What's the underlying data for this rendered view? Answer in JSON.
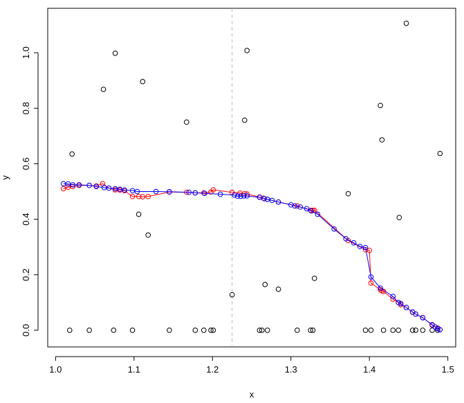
{
  "chart_data": {
    "type": "scatter",
    "xlabel": "x",
    "ylabel": "y",
    "xlim": [
      0.99,
      1.51
    ],
    "ylim": [
      -0.06,
      1.16
    ],
    "xticks": [
      1.0,
      1.1,
      1.2,
      1.3,
      1.4,
      1.5
    ],
    "xtick_labels": [
      "1.0",
      "1.1",
      "1.2",
      "1.3",
      "1.4",
      "1.5"
    ],
    "yticks": [
      0.0,
      0.2,
      0.4,
      0.6,
      0.8,
      1.0
    ],
    "ytick_labels": [
      "0.0",
      "0.2",
      "0.4",
      "0.6",
      "0.8",
      "1.0"
    ],
    "vline": {
      "x": 1.225,
      "color": "#bbbbbb",
      "style": "dashed"
    },
    "grid": false,
    "series": [
      {
        "mode": "points",
        "color": "#000000",
        "points": [
          [
            1.018,
            0.0
          ],
          [
            1.021,
            0.635
          ],
          [
            1.043,
            0.0
          ],
          [
            1.061,
            0.868
          ],
          [
            1.074,
            0.0
          ],
          [
            1.076,
            0.998
          ],
          [
            1.098,
            0.0
          ],
          [
            1.106,
            0.418
          ],
          [
            1.111,
            0.896
          ],
          [
            1.118,
            0.343
          ],
          [
            1.145,
            0.0
          ],
          [
            1.167,
            0.75
          ],
          [
            1.178,
            0.0
          ],
          [
            1.189,
            0.0
          ],
          [
            1.198,
            0.0
          ],
          [
            1.201,
            0.0
          ],
          [
            1.225,
            0.128
          ],
          [
            1.241,
            0.757
          ],
          [
            1.244,
            1.008
          ],
          [
            1.26,
            0.0
          ],
          [
            1.263,
            0.0
          ],
          [
            1.267,
            0.165
          ],
          [
            1.27,
            0.0
          ],
          [
            1.284,
            0.148
          ],
          [
            1.308,
            0.0
          ],
          [
            1.325,
            0.0
          ],
          [
            1.328,
            0.0
          ],
          [
            1.33,
            0.187
          ],
          [
            1.373,
            0.492
          ],
          [
            1.395,
            0.0
          ],
          [
            1.402,
            0.0
          ],
          [
            1.414,
            0.81
          ],
          [
            1.416,
            0.686
          ],
          [
            1.418,
            0.0
          ],
          [
            1.43,
            0.0
          ],
          [
            1.437,
            0.0
          ],
          [
            1.438,
            0.406
          ],
          [
            1.447,
            1.106
          ],
          [
            1.455,
            0.0
          ],
          [
            1.459,
            0.0
          ],
          [
            1.468,
            0.0
          ],
          [
            1.48,
            0.0
          ],
          [
            1.487,
            0.0
          ],
          [
            1.49,
            0.637
          ]
        ]
      },
      {
        "mode": "lines+points",
        "color": "#ff0000",
        "points": [
          [
            1.01,
            0.51
          ],
          [
            1.016,
            0.516
          ],
          [
            1.022,
            0.518
          ],
          [
            1.03,
            0.522
          ],
          [
            1.043,
            0.522
          ],
          [
            1.052,
            0.52
          ],
          [
            1.06,
            0.528
          ],
          [
            1.068,
            0.512
          ],
          [
            1.076,
            0.506
          ],
          [
            1.082,
            0.505
          ],
          [
            1.088,
            0.503
          ],
          [
            1.098,
            0.482
          ],
          [
            1.106,
            0.482
          ],
          [
            1.111,
            0.481
          ],
          [
            1.118,
            0.482
          ],
          [
            1.145,
            0.498
          ],
          [
            1.167,
            0.497
          ],
          [
            1.178,
            0.495
          ],
          [
            1.189,
            0.495
          ],
          [
            1.198,
            0.498
          ],
          [
            1.201,
            0.506
          ],
          [
            1.225,
            0.497
          ],
          [
            1.235,
            0.494
          ],
          [
            1.241,
            0.492
          ],
          [
            1.244,
            0.491
          ],
          [
            1.26,
            0.48
          ],
          [
            1.265,
            0.476
          ],
          [
            1.27,
            0.472
          ],
          [
            1.284,
            0.462
          ],
          [
            1.308,
            0.448
          ],
          [
            1.325,
            0.432
          ],
          [
            1.328,
            0.432
          ],
          [
            1.33,
            0.432
          ],
          [
            1.373,
            0.323
          ],
          [
            1.395,
            0.29
          ],
          [
            1.4,
            0.288
          ],
          [
            1.402,
            0.17
          ],
          [
            1.414,
            0.146
          ],
          [
            1.416,
            0.142
          ],
          [
            1.418,
            0.14
          ],
          [
            1.43,
            0.112
          ],
          [
            1.437,
            0.1
          ],
          [
            1.44,
            0.092
          ],
          [
            1.447,
            0.082
          ],
          [
            1.455,
            0.065
          ],
          [
            1.459,
            0.058
          ],
          [
            1.468,
            0.046
          ],
          [
            1.48,
            0.018
          ],
          [
            1.487,
            0.008
          ],
          [
            1.49,
            0.002
          ]
        ]
      },
      {
        "mode": "lines+points",
        "color": "#0000ff",
        "points": [
          [
            1.01,
            0.528
          ],
          [
            1.016,
            0.527
          ],
          [
            1.022,
            0.524
          ],
          [
            1.03,
            0.524
          ],
          [
            1.043,
            0.522
          ],
          [
            1.052,
            0.518
          ],
          [
            1.062,
            0.514
          ],
          [
            1.068,
            0.512
          ],
          [
            1.076,
            0.51
          ],
          [
            1.082,
            0.508
          ],
          [
            1.088,
            0.505
          ],
          [
            1.098,
            0.503
          ],
          [
            1.104,
            0.5
          ],
          [
            1.128,
            0.5
          ],
          [
            1.145,
            0.499
          ],
          [
            1.17,
            0.497
          ],
          [
            1.178,
            0.495
          ],
          [
            1.19,
            0.493
          ],
          [
            1.21,
            0.49
          ],
          [
            1.228,
            0.487
          ],
          [
            1.232,
            0.483
          ],
          [
            1.236,
            0.483
          ],
          [
            1.24,
            0.484
          ],
          [
            1.244,
            0.484
          ],
          [
            1.26,
            0.479
          ],
          [
            1.266,
            0.474
          ],
          [
            1.27,
            0.472
          ],
          [
            1.276,
            0.468
          ],
          [
            1.284,
            0.462
          ],
          [
            1.3,
            0.452
          ],
          [
            1.305,
            0.448
          ],
          [
            1.312,
            0.444
          ],
          [
            1.32,
            0.438
          ],
          [
            1.326,
            0.43
          ],
          [
            1.334,
            0.418
          ],
          [
            1.355,
            0.365
          ],
          [
            1.37,
            0.33
          ],
          [
            1.38,
            0.315
          ],
          [
            1.388,
            0.302
          ],
          [
            1.395,
            0.298
          ],
          [
            1.402,
            0.192
          ],
          [
            1.414,
            0.152
          ],
          [
            1.43,
            0.122
          ],
          [
            1.437,
            0.1
          ],
          [
            1.44,
            0.096
          ],
          [
            1.447,
            0.082
          ],
          [
            1.455,
            0.066
          ],
          [
            1.459,
            0.058
          ],
          [
            1.468,
            0.045
          ],
          [
            1.48,
            0.02
          ],
          [
            1.484,
            0.012
          ],
          [
            1.487,
            0.006
          ],
          [
            1.49,
            0.002
          ]
        ]
      }
    ]
  }
}
